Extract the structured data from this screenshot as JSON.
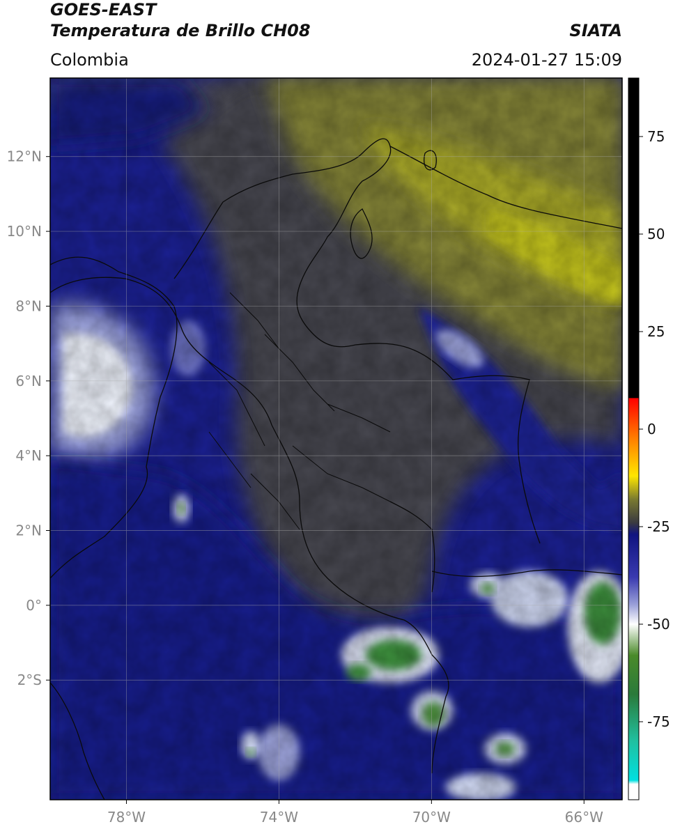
{
  "header": {
    "satellite": "GOES-EAST",
    "product": "Temperatura de Brillo CH08",
    "region": "Colombia",
    "source": "SIATA",
    "datetime": "2024-01-27 15:09"
  },
  "map": {
    "lon_range": [
      -80,
      -65
    ],
    "lat_range": [
      -5.2,
      14.1
    ],
    "lon_ticks": [
      {
        "lon": -78,
        "label": "78°W"
      },
      {
        "lon": -74,
        "label": "74°W"
      },
      {
        "lon": -70,
        "label": "70°W"
      },
      {
        "lon": -66,
        "label": "66°W"
      }
    ],
    "lat_ticks": [
      {
        "lat": 12,
        "label": "12°N"
      },
      {
        "lat": 10,
        "label": "10°N"
      },
      {
        "lat": 8,
        "label": "8°N"
      },
      {
        "lat": 6,
        "label": "6°N"
      },
      {
        "lat": 4,
        "label": "4°N"
      },
      {
        "lat": 2,
        "label": "2°N"
      },
      {
        "lat": 0,
        "label": "0°"
      },
      {
        "lat": -2,
        "label": "2°S"
      }
    ],
    "colors": {
      "deep_blue": "#1a1f8c",
      "navy": "#0f1670",
      "gray": "#4a4a4f",
      "olive": "#8a8a2e",
      "yellow_olive": "#b3b324",
      "white_cloud": "#e8ecf5",
      "green": "#3a8a3a"
    }
  },
  "colorbar": {
    "vmin": -95,
    "vmax": 90,
    "ticks": [
      {
        "value": 75,
        "label": "75"
      },
      {
        "value": 50,
        "label": "50"
      },
      {
        "value": 25,
        "label": "25"
      },
      {
        "value": 0,
        "label": "0"
      },
      {
        "value": -25,
        "label": "-25"
      },
      {
        "value": -50,
        "label": "-50"
      },
      {
        "value": -75,
        "label": "-75"
      }
    ],
    "stops": [
      {
        "value": 90,
        "color": "#000000"
      },
      {
        "value": 8,
        "color": "#000000"
      },
      {
        "value": 7.9,
        "color": "#ff0000"
      },
      {
        "value": -2,
        "color": "#ff7a00"
      },
      {
        "value": -12,
        "color": "#ffe600"
      },
      {
        "value": -18,
        "color": "#7a7a30"
      },
      {
        "value": -24,
        "color": "#3a3a40"
      },
      {
        "value": -27,
        "color": "#101480"
      },
      {
        "value": -38,
        "color": "#3a3ab0"
      },
      {
        "value": -45,
        "color": "#9aa0d8"
      },
      {
        "value": -50,
        "color": "#ffffff"
      },
      {
        "value": -58,
        "color": "#4a8a2a"
      },
      {
        "value": -68,
        "color": "#2a7a3a"
      },
      {
        "value": -80,
        "color": "#20c0a0"
      },
      {
        "value": -90,
        "color": "#00e0e0"
      },
      {
        "value": -91,
        "color": "#ffffff"
      },
      {
        "value": -95,
        "color": "#ffffff"
      }
    ]
  }
}
